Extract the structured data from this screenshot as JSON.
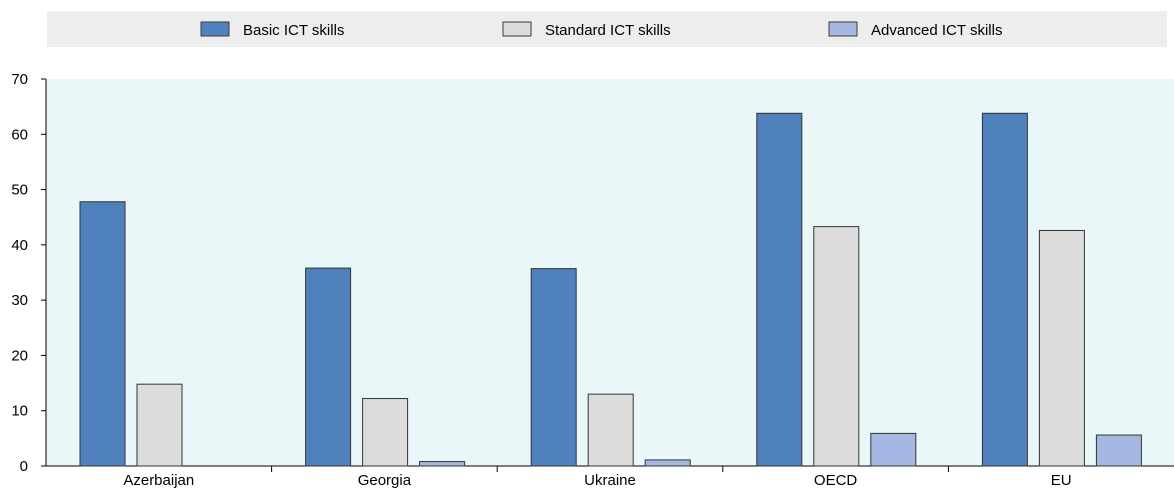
{
  "chart_data": {
    "type": "bar",
    "categories": [
      "Azerbaijan",
      "Georgia",
      "Ukraine",
      "OECD",
      "EU"
    ],
    "series": [
      {
        "name": "Basic ICT skills",
        "color": "#4f81bd",
        "values": [
          47.8,
          35.8,
          35.7,
          63.8,
          63.8
        ]
      },
      {
        "name": "Standard ICT skills",
        "color": "#dcdcdc",
        "values": [
          14.8,
          12.2,
          13.0,
          43.3,
          42.6
        ]
      },
      {
        "name": "Advanced ICT skills",
        "color": "#a5b8e3",
        "values": [
          null,
          0.8,
          1.1,
          5.9,
          5.6
        ]
      }
    ],
    "ylim": [
      0,
      70
    ],
    "yticks": [
      0,
      10,
      20,
      30,
      40,
      50,
      60,
      70
    ],
    "grid": false,
    "legend_position": "top",
    "plot_background": "#eaf7f9",
    "legend_background": "#ededed",
    "title": "",
    "xlabel": "",
    "ylabel": ""
  }
}
